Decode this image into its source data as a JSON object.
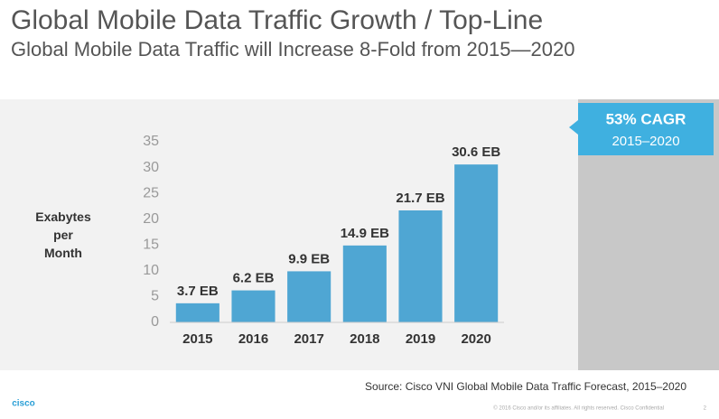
{
  "chart_data": {
    "type": "bar",
    "title": "Global Mobile Data Traffic Growth / Top-Line",
    "subtitle": "Global Mobile Data Traffic will Increase 8-Fold from 2015—2020",
    "ylabel": "Exabytes per Month",
    "categories": [
      "2015",
      "2016",
      "2017",
      "2018",
      "2019",
      "2020"
    ],
    "values": [
      3.7,
      6.2,
      9.9,
      14.9,
      21.7,
      30.6
    ],
    "value_labels": [
      "3.7 EB",
      "6.2 EB",
      "9.9 EB",
      "14.9 EB",
      "21.7 EB",
      "30.6 EB"
    ],
    "color": "#4fa6d3",
    "ylim": [
      0,
      35
    ],
    "yticks": [
      0,
      5,
      10,
      15,
      20,
      25,
      30,
      35
    ],
    "grid": false,
    "callout": {
      "title": "53% CAGR",
      "subtitle": "2015–2020"
    },
    "source": "Source: Cisco VNI Global Mobile Data Traffic Forecast, 2015–2020",
    "logo": "cisco",
    "footer": "© 2016  Cisco and/or its affiliates. All rights reserved.   Cisco Confidential",
    "page_number": "2"
  }
}
